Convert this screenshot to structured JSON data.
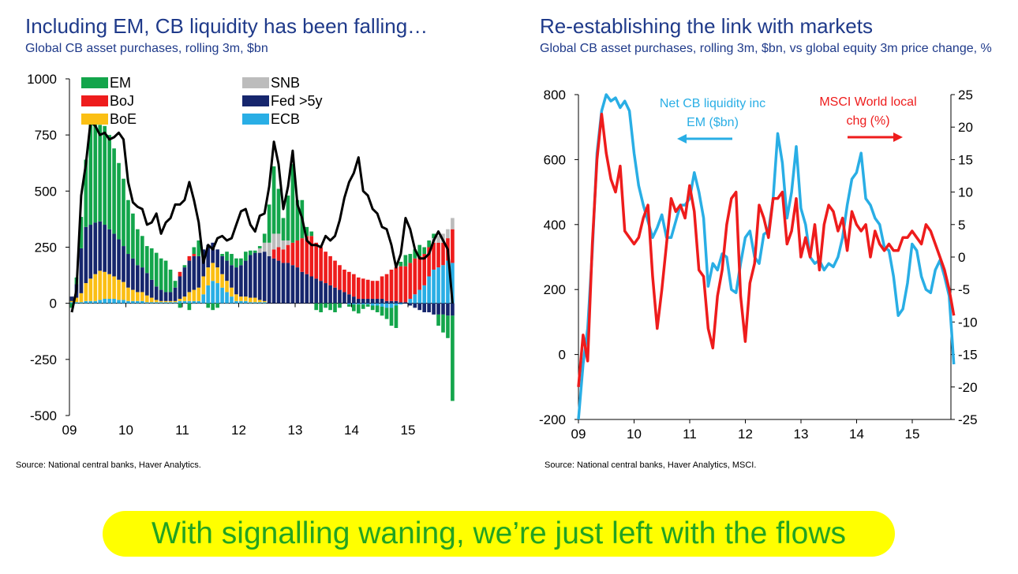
{
  "left_panel": {
    "title": "Including EM, CB liquidity has been falling…",
    "subtitle": "Global CB asset purchases, rolling 3m, $bn",
    "source": "Source: National central banks, Haver Analytics."
  },
  "right_panel": {
    "title": "Re-establishing the link with markets",
    "subtitle": "Global CB asset purchases, rolling 3m, $bn, vs global equity 3m price change, %",
    "source": "Source: National central banks, Haver Analytics, MSCI."
  },
  "banner": {
    "text": "With signalling waning, we’re just left with the flows"
  },
  "chart_data": [
    {
      "type": "bar",
      "stacked": true,
      "title": "Including EM, CB liquidity has been falling…",
      "subtitle": "Global CB asset purchases, rolling 3m, $bn",
      "ylim": [
        -500,
        1000
      ],
      "yticks": [
        -500,
        -250,
        0,
        250,
        500,
        750,
        1000
      ],
      "xticks": [
        "09",
        "10",
        "11",
        "12",
        "13",
        "14",
        "15"
      ],
      "x_start": 2009.0,
      "x_step": 0.0833,
      "legend_placement": "top",
      "colors": {
        "EM": "#13a54b",
        "BoJ": "#ee1c1c",
        "BoE": "#fbbf14",
        "SNB": "#bcbcbc",
        "Fed >5y": "#16266d",
        "ECB": "#29aee5",
        "Total": "#000000"
      },
      "legend": [
        {
          "name": "EM",
          "color": "#13a54b"
        },
        {
          "name": "SNB",
          "color": "#bcbcbc"
        },
        {
          "name": "BoJ",
          "color": "#ee1c1c"
        },
        {
          "name": "Fed >5y",
          "color": "#16266d"
        },
        {
          "name": "BoE",
          "color": "#fbbf14"
        },
        {
          "name": "ECB",
          "color": "#29aee5"
        }
      ],
      "series": [
        {
          "name": "ECB",
          "values": [
            5,
            5,
            5,
            10,
            10,
            10,
            15,
            20,
            20,
            20,
            15,
            15,
            10,
            10,
            10,
            10,
            5,
            5,
            5,
            5,
            5,
            5,
            5,
            10,
            10,
            10,
            10,
            10,
            40,
            80,
            100,
            90,
            70,
            50,
            30,
            10,
            10,
            10,
            5,
            5,
            5,
            5,
            0,
            0,
            0,
            0,
            0,
            0,
            0,
            0,
            0,
            0,
            0,
            0,
            0,
            0,
            0,
            0,
            0,
            -5,
            -5,
            -5,
            -5,
            -5,
            -10,
            -10,
            -15,
            -20,
            -20,
            -10,
            -5,
            0,
            20,
            40,
            60,
            80,
            120,
            150,
            160,
            170,
            190,
            180
          ]
        },
        {
          "name": "BoE",
          "values": [
            5,
            20,
            40,
            80,
            100,
            120,
            130,
            120,
            110,
            100,
            90,
            80,
            60,
            50,
            40,
            40,
            30,
            20,
            10,
            5,
            5,
            5,
            5,
            10,
            20,
            40,
            50,
            60,
            80,
            80,
            80,
            70,
            60,
            50,
            40,
            30,
            20,
            20,
            20,
            20,
            10,
            5,
            0,
            0,
            0,
            0,
            0,
            0,
            0,
            0,
            0,
            0,
            0,
            0,
            0,
            0,
            0,
            0,
            0,
            0,
            0,
            0,
            0,
            0,
            0,
            0,
            0,
            0,
            0,
            0,
            0,
            0,
            0,
            0,
            0,
            0,
            0,
            0,
            0,
            0,
            0,
            0
          ]
        },
        {
          "name": "Fed >5y",
          "values": [
            20,
            60,
            200,
            250,
            240,
            230,
            220,
            210,
            200,
            190,
            180,
            160,
            150,
            140,
            120,
            110,
            100,
            80,
            60,
            50,
            40,
            40,
            60,
            100,
            130,
            140,
            150,
            140,
            120,
            100,
            90,
            80,
            80,
            90,
            100,
            120,
            140,
            160,
            190,
            200,
            210,
            220,
            210,
            200,
            190,
            180,
            180,
            170,
            160,
            140,
            130,
            120,
            110,
            100,
            90,
            80,
            70,
            60,
            50,
            40,
            30,
            20,
            20,
            20,
            20,
            20,
            20,
            10,
            10,
            10,
            5,
            5,
            -10,
            -20,
            -30,
            -40,
            -40,
            -50,
            -50,
            -50,
            -55,
            -55
          ]
        },
        {
          "name": "BoJ",
          "values": [
            0,
            0,
            0,
            0,
            0,
            0,
            0,
            0,
            0,
            0,
            0,
            0,
            0,
            0,
            0,
            0,
            0,
            0,
            0,
            0,
            0,
            0,
            0,
            20,
            0,
            20,
            10,
            0,
            0,
            0,
            0,
            0,
            0,
            0,
            0,
            0,
            0,
            0,
            0,
            0,
            0,
            0,
            0,
            40,
            60,
            60,
            80,
            100,
            120,
            150,
            170,
            180,
            160,
            150,
            140,
            130,
            120,
            110,
            100,
            100,
            100,
            95,
            90,
            85,
            80,
            80,
            100,
            120,
            140,
            150,
            160,
            160,
            160,
            160,
            150,
            140,
            130,
            120,
            110,
            100,
            100,
            150
          ]
        },
        {
          "name": "SNB",
          "values": [
            0,
            0,
            0,
            0,
            0,
            0,
            0,
            0,
            0,
            0,
            0,
            0,
            0,
            0,
            0,
            0,
            0,
            0,
            0,
            0,
            0,
            0,
            0,
            0,
            0,
            0,
            0,
            0,
            0,
            0,
            0,
            0,
            0,
            0,
            0,
            0,
            0,
            0,
            0,
            0,
            20,
            40,
            60,
            70,
            60,
            40,
            20,
            0,
            0,
            0,
            0,
            0,
            0,
            0,
            0,
            0,
            0,
            0,
            0,
            0,
            0,
            0,
            0,
            0,
            0,
            0,
            0,
            0,
            0,
            0,
            0,
            0,
            0,
            0,
            0,
            0,
            0,
            20,
            30,
            40,
            40,
            50
          ]
        },
        {
          "name": "EM",
          "values": [
            -20,
            30,
            140,
            300,
            470,
            440,
            430,
            440,
            420,
            380,
            340,
            300,
            240,
            200,
            160,
            140,
            120,
            140,
            150,
            140,
            140,
            100,
            30,
            -20,
            10,
            -30,
            30,
            70,
            0,
            -20,
            -30,
            -20,
            10,
            40,
            50,
            40,
            30,
            40,
            20,
            10,
            10,
            40,
            170,
            300,
            200,
            100,
            200,
            350,
            180,
            170,
            40,
            20,
            -30,
            -40,
            -20,
            -30,
            -40,
            -20,
            0,
            -10,
            -30,
            -40,
            -20,
            -10,
            -20,
            -30,
            -40,
            -50,
            -80,
            -100,
            20,
            50,
            40,
            40,
            50,
            30,
            30,
            20,
            -50,
            -80,
            -100,
            -380
          ]
        },
        {
          "name": "Total",
          "type": "line",
          "values": [
            -40,
            60,
            480,
            620,
            810,
            790,
            750,
            760,
            730,
            740,
            760,
            730,
            540,
            450,
            430,
            420,
            350,
            360,
            400,
            310,
            360,
            380,
            440,
            440,
            460,
            540,
            460,
            360,
            180,
            260,
            240,
            290,
            300,
            280,
            290,
            350,
            410,
            420,
            350,
            320,
            390,
            400,
            520,
            720,
            620,
            420,
            520,
            680,
            440,
            380,
            280,
            260,
            260,
            250,
            300,
            280,
            300,
            370,
            470,
            540,
            580,
            650,
            500,
            480,
            420,
            400,
            340,
            330,
            260,
            160,
            220,
            380,
            330,
            240,
            200,
            200,
            220,
            280,
            320,
            280,
            240,
            0
          ]
        }
      ]
    },
    {
      "type": "line",
      "title": "Re-establishing the link with markets",
      "subtitle": "Global CB asset purchases, rolling 3m, $bn, vs global equity 3m price change, %",
      "xticks": [
        "09",
        "10",
        "11",
        "12",
        "13",
        "14",
        "15"
      ],
      "x_start": 2009.0,
      "x_step": 0.0833,
      "y_left": {
        "lim": [
          -200,
          800
        ],
        "ticks": [
          -200,
          0,
          200,
          400,
          600,
          800
        ]
      },
      "y_right": {
        "lim": [
          -25,
          25
        ],
        "ticks": [
          -25,
          -20,
          -15,
          -10,
          -5,
          0,
          5,
          10,
          15,
          20,
          25
        ]
      },
      "annotations": [
        {
          "text": "Net CB liquidity inc",
          "arrow": "left"
        },
        {
          "text": "EM ($bn)"
        },
        {
          "text": "MSCI World local",
          "arrow": "right"
        },
        {
          "text": "chg (%)"
        }
      ],
      "series": [
        {
          "name": "Net CB liquidity inc EM ($bn)",
          "axis": "left",
          "color": "#29aee5",
          "values": [
            -200,
            -30,
            80,
            320,
            620,
            750,
            800,
            780,
            790,
            760,
            780,
            750,
            620,
            520,
            460,
            410,
            360,
            390,
            430,
            360,
            360,
            410,
            460,
            460,
            480,
            560,
            500,
            420,
            210,
            280,
            260,
            310,
            300,
            200,
            190,
            280,
            360,
            380,
            300,
            280,
            370,
            380,
            480,
            680,
            590,
            420,
            500,
            640,
            450,
            400,
            300,
            280,
            290,
            260,
            280,
            270,
            300,
            360,
            460,
            540,
            560,
            620,
            480,
            460,
            420,
            400,
            330,
            320,
            240,
            120,
            140,
            220,
            340,
            320,
            240,
            200,
            190,
            260,
            290,
            240,
            180,
            -30
          ]
        },
        {
          "name": "MSCI World local chg (%)",
          "axis": "right",
          "color": "#ee1c1c",
          "values": [
            -20,
            -12,
            -16,
            2,
            15,
            22,
            16,
            12,
            10,
            14,
            4,
            3,
            2,
            3,
            6,
            8,
            -3,
            -11,
            -5,
            2,
            9,
            7,
            8,
            6,
            11,
            7,
            -2,
            -3,
            -11,
            -14,
            -6,
            -2,
            5,
            9,
            10,
            -6,
            -13,
            -4,
            -1,
            8,
            6,
            3,
            9,
            9,
            10,
            2,
            4,
            9,
            0,
            3,
            0,
            5,
            -2,
            5,
            8,
            7,
            4,
            6,
            1,
            7,
            5,
            4,
            5,
            0,
            4,
            2,
            1,
            2,
            1,
            1,
            3,
            3,
            4,
            3,
            2,
            5,
            4,
            2,
            0,
            -2,
            -5,
            -9
          ]
        }
      ]
    }
  ]
}
